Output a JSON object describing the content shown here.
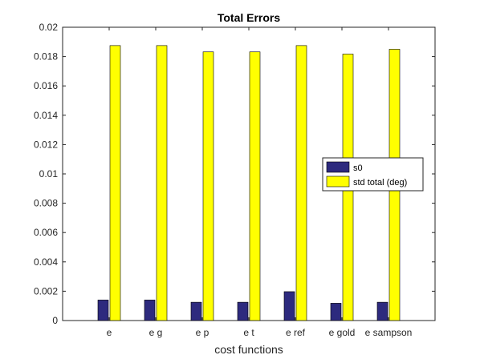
{
  "chart_data": {
    "type": "bar",
    "title": "Total Errors",
    "xlabel": "cost functions",
    "ylabel": "",
    "categories": [
      "e",
      "e g",
      "e p",
      "e t",
      "e ref",
      "e gold",
      "e sampson"
    ],
    "series": [
      {
        "name": "s0",
        "color": "#2d2a7e",
        "values": [
          0.0014,
          0.0014,
          0.00125,
          0.00125,
          0.00197,
          0.00118,
          0.00125
        ]
      },
      {
        "name": "std total (deg)",
        "color": "#ffff00",
        "values": [
          0.01875,
          0.01875,
          0.01832,
          0.01832,
          0.01875,
          0.01817,
          0.0185
        ]
      }
    ],
    "ylim": [
      0,
      0.02
    ],
    "yticks": [
      "0",
      "0.002",
      "0.004",
      "0.006",
      "0.008",
      "0.01",
      "0.012",
      "0.014",
      "0.016",
      "0.018",
      "0.02"
    ],
    "grid": false,
    "legend_position": "right"
  }
}
